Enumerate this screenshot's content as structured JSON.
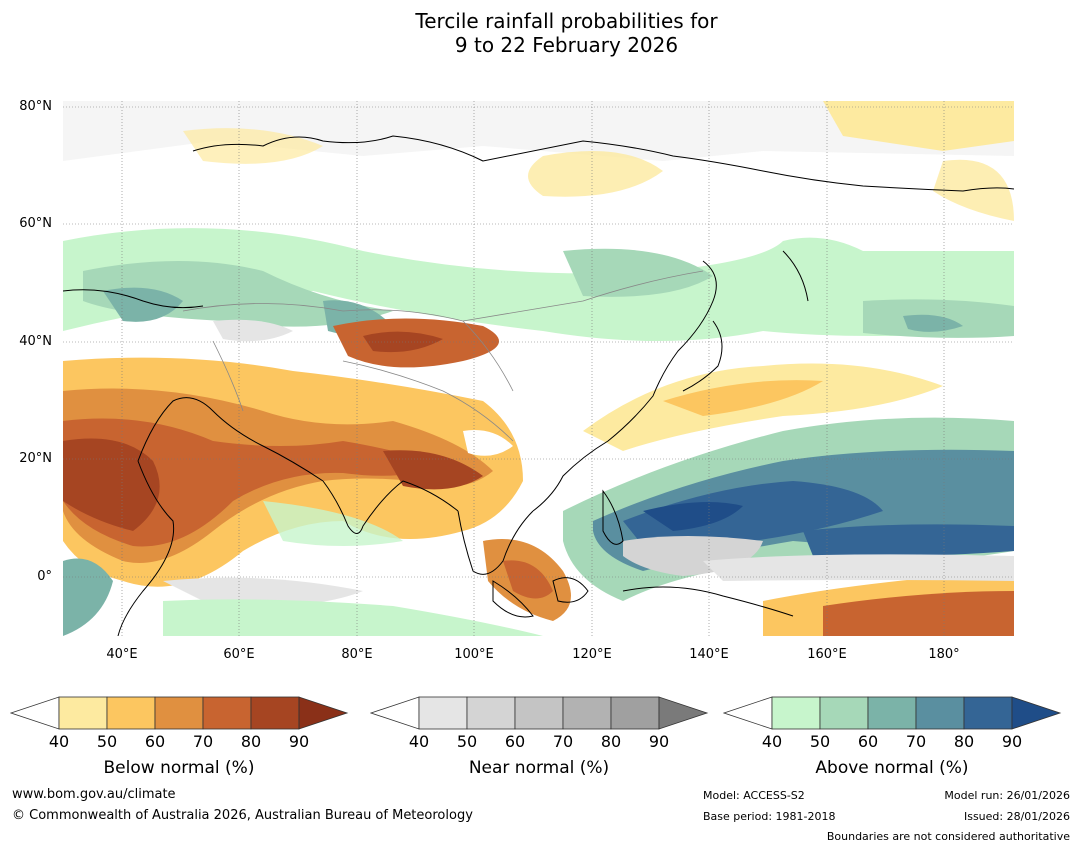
{
  "header": {
    "title_line1": "Tercile rainfall probabilities for",
    "title_line2": "9 to 22 February 2026"
  },
  "map": {
    "lat_labels": [
      "80°N",
      "60°N",
      "40°N",
      "20°N",
      "0°"
    ],
    "lon_labels": [
      "40°E",
      "60°E",
      "80°E",
      "100°E",
      "120°E",
      "140°E",
      "160°E",
      "180°"
    ],
    "extent": {
      "lon_min": 30,
      "lon_max": 192,
      "lat_min": -10,
      "lat_max": 81
    }
  },
  "legends": {
    "below": {
      "title": "Below normal (%)",
      "ticks": [
        "40",
        "50",
        "60",
        "70",
        "80",
        "90"
      ],
      "colors": [
        "#fdeaa0",
        "#fcc660",
        "#e09040",
        "#c86430",
        "#a64522",
        "#8a3018"
      ]
    },
    "near": {
      "title": "Near normal (%)",
      "ticks": [
        "40",
        "50",
        "60",
        "70",
        "80",
        "90"
      ],
      "colors": [
        "#e5e5e5",
        "#d4d4d4",
        "#c4c4c4",
        "#b2b2b2",
        "#a0a0a0",
        "#7a7a7a"
      ]
    },
    "above": {
      "title": "Above normal (%)",
      "ticks": [
        "40",
        "50",
        "60",
        "70",
        "80",
        "90"
      ],
      "colors": [
        "#c7f5cc",
        "#a6d8b8",
        "#7bb3a8",
        "#5a8fa0",
        "#346595",
        "#1f4d88"
      ]
    }
  },
  "footer": {
    "website": "www.bom.gov.au/climate",
    "copyright": "© Commonwealth of Australia 2026, Australian Bureau of Meteorology",
    "model": "Model: ACCESS-S2",
    "base_period": "Base period: 1981-2018",
    "model_run": "Model run: 26/01/2026",
    "issued": "Issued: 28/01/2026",
    "disclaimer": "Boundaries are not considered authoritative"
  }
}
